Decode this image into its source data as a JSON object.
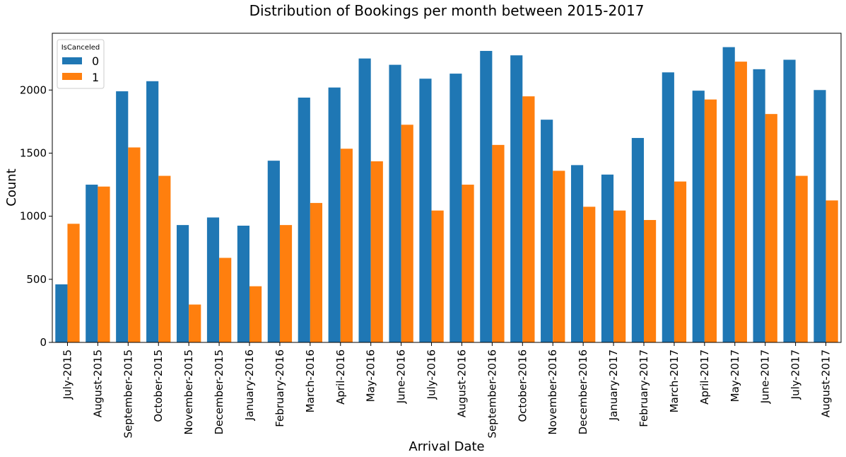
{
  "chart_data": {
    "type": "bar",
    "title": "Distribution of Bookings per month between 2015-2017",
    "xlabel": "Arrival Date",
    "ylabel": "Count",
    "ylim": [
      0,
      2450
    ],
    "yticks": [
      0,
      500,
      1000,
      1500,
      2000
    ],
    "grid": false,
    "legend": {
      "title": "IsCanceled",
      "placement": "top-left"
    },
    "categories": [
      "July-2015",
      "August-2015",
      "September-2015",
      "October-2015",
      "November-2015",
      "December-2015",
      "January-2016",
      "February-2016",
      "March-2016",
      "April-2016",
      "May-2016",
      "June-2016",
      "July-2016",
      "August-2016",
      "September-2016",
      "October-2016",
      "November-2016",
      "December-2016",
      "January-2017",
      "February-2017",
      "March-2017",
      "April-2017",
      "May-2017",
      "June-2017",
      "July-2017",
      "August-2017"
    ],
    "series": [
      {
        "name": "0",
        "color": "#1f77b4",
        "values": [
          460,
          1250,
          1990,
          2070,
          930,
          990,
          925,
          1440,
          1940,
          2020,
          2250,
          2200,
          2090,
          2130,
          2310,
          2275,
          1765,
          1405,
          1330,
          1620,
          2140,
          1995,
          2340,
          2165,
          2240,
          2000
        ]
      },
      {
        "name": "1",
        "color": "#ff7f0e",
        "values": [
          940,
          1235,
          1545,
          1320,
          300,
          670,
          445,
          930,
          1105,
          1535,
          1435,
          1725,
          1045,
          1250,
          1565,
          1950,
          1360,
          1075,
          1045,
          970,
          1275,
          1925,
          2225,
          1810,
          1320,
          1125
        ]
      }
    ]
  }
}
